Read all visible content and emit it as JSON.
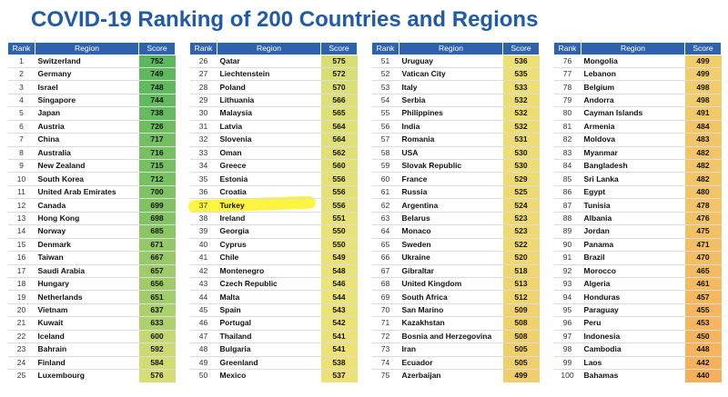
{
  "title": "COVID-19 Ranking of 200 Countries and Regions",
  "headers": {
    "rank": "Rank",
    "region": "Region",
    "score": "Score"
  },
  "colors": {
    "header": "#2e62ad",
    "title": "#1f5ba8",
    "score_high": "#5cb85c",
    "score_low": "#f7b45a",
    "highlight": "#fff200"
  },
  "highlighted_rank": "37",
  "columns": [
    [
      {
        "rank": "1",
        "region": "Switzerland",
        "score": "752"
      },
      {
        "rank": "2",
        "region": "Germany",
        "score": "749"
      },
      {
        "rank": "3",
        "region": "Israel",
        "score": "748"
      },
      {
        "rank": "4",
        "region": "Singapore",
        "score": "744"
      },
      {
        "rank": "5",
        "region": "Japan",
        "score": "738"
      },
      {
        "rank": "6",
        "region": "Austria",
        "score": "726"
      },
      {
        "rank": "7",
        "region": "China",
        "score": "717"
      },
      {
        "rank": "8",
        "region": "Australia",
        "score": "716"
      },
      {
        "rank": "9",
        "region": "New Zealand",
        "score": "715"
      },
      {
        "rank": "10",
        "region": "South Korea",
        "score": "712"
      },
      {
        "rank": "11",
        "region": "United Arab Emirates",
        "score": "700"
      },
      {
        "rank": "12",
        "region": "Canada",
        "score": "699"
      },
      {
        "rank": "13",
        "region": "Hong Kong",
        "score": "698"
      },
      {
        "rank": "14",
        "region": "Norway",
        "score": "685"
      },
      {
        "rank": "15",
        "region": "Denmark",
        "score": "671"
      },
      {
        "rank": "16",
        "region": "Taiwan",
        "score": "667"
      },
      {
        "rank": "17",
        "region": "Saudi Arabia",
        "score": "657"
      },
      {
        "rank": "18",
        "region": "Hungary",
        "score": "656"
      },
      {
        "rank": "19",
        "region": "Netherlands",
        "score": "651"
      },
      {
        "rank": "20",
        "region": "Vietnam",
        "score": "637"
      },
      {
        "rank": "21",
        "region": "Kuwait",
        "score": "633"
      },
      {
        "rank": "22",
        "region": "Iceland",
        "score": "600"
      },
      {
        "rank": "23",
        "region": "Bahrain",
        "score": "592"
      },
      {
        "rank": "24",
        "region": "Finland",
        "score": "584"
      },
      {
        "rank": "25",
        "region": "Luxembourg",
        "score": "576"
      }
    ],
    [
      {
        "rank": "26",
        "region": "Qatar",
        "score": "575"
      },
      {
        "rank": "27",
        "region": "Liechtenstein",
        "score": "572"
      },
      {
        "rank": "28",
        "region": "Poland",
        "score": "570"
      },
      {
        "rank": "29",
        "region": "Lithuania",
        "score": "566"
      },
      {
        "rank": "30",
        "region": "Malaysia",
        "score": "565"
      },
      {
        "rank": "31",
        "region": "Latvia",
        "score": "564"
      },
      {
        "rank": "32",
        "region": "Slovenia",
        "score": "564"
      },
      {
        "rank": "33",
        "region": "Oman",
        "score": "562"
      },
      {
        "rank": "34",
        "region": "Greece",
        "score": "560"
      },
      {
        "rank": "35",
        "region": "Estonia",
        "score": "556"
      },
      {
        "rank": "36",
        "region": "Croatia",
        "score": "556"
      },
      {
        "rank": "37",
        "region": "Turkey",
        "score": "556"
      },
      {
        "rank": "38",
        "region": "Ireland",
        "score": "551"
      },
      {
        "rank": "39",
        "region": "Georgia",
        "score": "550"
      },
      {
        "rank": "40",
        "region": "Cyprus",
        "score": "550"
      },
      {
        "rank": "41",
        "region": "Chile",
        "score": "549"
      },
      {
        "rank": "42",
        "region": "Montenegro",
        "score": "548"
      },
      {
        "rank": "43",
        "region": "Czech Republic",
        "score": "546"
      },
      {
        "rank": "44",
        "region": "Malta",
        "score": "544"
      },
      {
        "rank": "45",
        "region": "Spain",
        "score": "543"
      },
      {
        "rank": "46",
        "region": "Portugal",
        "score": "542"
      },
      {
        "rank": "47",
        "region": "Thailand",
        "score": "541"
      },
      {
        "rank": "48",
        "region": "Bulgaria",
        "score": "541"
      },
      {
        "rank": "49",
        "region": "Greenland",
        "score": "538"
      },
      {
        "rank": "50",
        "region": "Mexico",
        "score": "537"
      }
    ],
    [
      {
        "rank": "51",
        "region": "Uruguay",
        "score": "536"
      },
      {
        "rank": "52",
        "region": "Vatican City",
        "score": "535"
      },
      {
        "rank": "53",
        "region": "Italy",
        "score": "533"
      },
      {
        "rank": "54",
        "region": "Serbia",
        "score": "532"
      },
      {
        "rank": "55",
        "region": "Philippines",
        "score": "532"
      },
      {
        "rank": "56",
        "region": "India",
        "score": "532"
      },
      {
        "rank": "57",
        "region": "Romania",
        "score": "531"
      },
      {
        "rank": "58",
        "region": "USA",
        "score": "530"
      },
      {
        "rank": "59",
        "region": "Slovak Republic",
        "score": "530"
      },
      {
        "rank": "60",
        "region": "France",
        "score": "529"
      },
      {
        "rank": "61",
        "region": "Russia",
        "score": "525"
      },
      {
        "rank": "62",
        "region": "Argentina",
        "score": "524"
      },
      {
        "rank": "63",
        "region": "Belarus",
        "score": "523"
      },
      {
        "rank": "64",
        "region": "Monaco",
        "score": "523"
      },
      {
        "rank": "65",
        "region": "Sweden",
        "score": "522"
      },
      {
        "rank": "66",
        "region": "Ukraine",
        "score": "520"
      },
      {
        "rank": "67",
        "region": "Gibraltar",
        "score": "518"
      },
      {
        "rank": "68",
        "region": "United Kingdom",
        "score": "513"
      },
      {
        "rank": "69",
        "region": "South Africa",
        "score": "512"
      },
      {
        "rank": "70",
        "region": "San Marino",
        "score": "509"
      },
      {
        "rank": "71",
        "region": "Kazakhstan",
        "score": "508"
      },
      {
        "rank": "72",
        "region": "Bosnia and Herzegovina",
        "score": "508"
      },
      {
        "rank": "73",
        "region": "Iran",
        "score": "505"
      },
      {
        "rank": "74",
        "region": "Ecuador",
        "score": "505"
      },
      {
        "rank": "75",
        "region": "Azerbaijan",
        "score": "499"
      }
    ],
    [
      {
        "rank": "76",
        "region": "Mongolia",
        "score": "499"
      },
      {
        "rank": "77",
        "region": "Lebanon",
        "score": "499"
      },
      {
        "rank": "78",
        "region": "Belgium",
        "score": "498"
      },
      {
        "rank": "79",
        "region": "Andorra",
        "score": "498"
      },
      {
        "rank": "80",
        "region": "Cayman Islands",
        "score": "491"
      },
      {
        "rank": "81",
        "region": "Armenia",
        "score": "484"
      },
      {
        "rank": "82",
        "region": "Moldova",
        "score": "483"
      },
      {
        "rank": "83",
        "region": "Myanmar",
        "score": "482"
      },
      {
        "rank": "84",
        "region": "Bangladesh",
        "score": "482"
      },
      {
        "rank": "85",
        "region": "Sri Lanka",
        "score": "482"
      },
      {
        "rank": "86",
        "region": "Egypt",
        "score": "480"
      },
      {
        "rank": "87",
        "region": "Tunisia",
        "score": "478"
      },
      {
        "rank": "88",
        "region": "Albania",
        "score": "476"
      },
      {
        "rank": "89",
        "region": "Jordan",
        "score": "475"
      },
      {
        "rank": "90",
        "region": "Panama",
        "score": "471"
      },
      {
        "rank": "91",
        "region": "Brazil",
        "score": "470"
      },
      {
        "rank": "92",
        "region": "Morocco",
        "score": "465"
      },
      {
        "rank": "93",
        "region": "Algeria",
        "score": "461"
      },
      {
        "rank": "94",
        "region": "Honduras",
        "score": "457"
      },
      {
        "rank": "95",
        "region": "Paraguay",
        "score": "455"
      },
      {
        "rank": "96",
        "region": "Peru",
        "score": "453"
      },
      {
        "rank": "97",
        "region": "Indonesia",
        "score": "450"
      },
      {
        "rank": "98",
        "region": "Cambodia",
        "score": "448"
      },
      {
        "rank": "99",
        "region": "Laos",
        "score": "442"
      },
      {
        "rank": "100",
        "region": "Bahamas",
        "score": "440"
      }
    ]
  ]
}
